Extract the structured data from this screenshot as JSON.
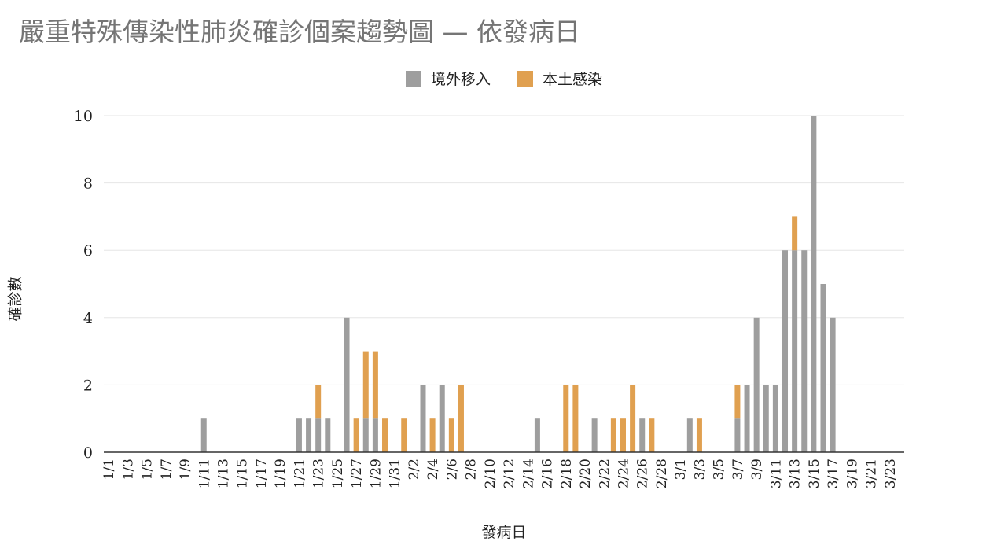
{
  "title": "嚴重特殊傳染性肺炎確診個案趨勢圖 — 依發病日",
  "colors": {
    "imported": "#9e9e9e",
    "local": "#e0a050"
  },
  "chart_data": {
    "type": "bar",
    "stacked": true,
    "xlabel": "發病日",
    "ylabel": "確診數",
    "ylim": [
      0,
      10
    ],
    "yticks": [
      0,
      2,
      4,
      6,
      8,
      10
    ],
    "grid": true,
    "legend_position": "top-center",
    "categories": [
      "1/1",
      "1/2",
      "1/3",
      "1/4",
      "1/5",
      "1/6",
      "1/7",
      "1/8",
      "1/9",
      "1/10",
      "1/11",
      "1/12",
      "1/13",
      "1/14",
      "1/15",
      "1/16",
      "1/17",
      "1/18",
      "1/19",
      "1/20",
      "1/21",
      "1/22",
      "1/23",
      "1/24",
      "1/25",
      "1/26",
      "1/27",
      "1/28",
      "1/29",
      "1/30",
      "1/31",
      "2/1",
      "2/2",
      "2/3",
      "2/4",
      "2/5",
      "2/6",
      "2/7",
      "2/8",
      "2/9",
      "2/10",
      "2/11",
      "2/12",
      "2/13",
      "2/14",
      "2/15",
      "2/16",
      "2/17",
      "2/18",
      "2/19",
      "2/20",
      "2/21",
      "2/22",
      "2/23",
      "2/24",
      "2/25",
      "2/26",
      "2/27",
      "2/28",
      "2/29",
      "3/1",
      "3/2",
      "3/3",
      "3/4",
      "3/5",
      "3/6",
      "3/7",
      "3/8",
      "3/9",
      "3/10",
      "3/11",
      "3/12",
      "3/13",
      "3/14",
      "3/15",
      "3/16",
      "3/17",
      "3/18",
      "3/19",
      "3/20",
      "3/21",
      "3/22",
      "3/23",
      "3/24"
    ],
    "tick_labels": [
      "1/1",
      "1/3",
      "1/5",
      "1/7",
      "1/9",
      "1/11",
      "1/13",
      "1/15",
      "1/17",
      "1/19",
      "1/21",
      "1/23",
      "1/25",
      "1/27",
      "1/29",
      "1/31",
      "2/2",
      "2/4",
      "2/6",
      "2/8",
      "2/10",
      "2/12",
      "2/14",
      "2/16",
      "2/18",
      "2/20",
      "2/22",
      "2/24",
      "2/26",
      "2/28",
      "3/1",
      "3/3",
      "3/5",
      "3/7",
      "3/9",
      "3/11",
      "3/13",
      "3/15",
      "3/17",
      "3/19",
      "3/21",
      "3/23"
    ],
    "series": [
      {
        "name": "境外移入",
        "values": [
          0,
          0,
          0,
          0,
          0,
          0,
          0,
          0,
          0,
          0,
          1,
          0,
          0,
          0,
          0,
          0,
          0,
          0,
          0,
          0,
          1,
          1,
          1,
          1,
          0,
          4,
          0,
          1,
          1,
          0,
          0,
          0,
          0,
          2,
          0,
          2,
          0,
          0,
          0,
          0,
          0,
          0,
          0,
          0,
          0,
          1,
          0,
          0,
          0,
          0,
          0,
          1,
          0,
          0,
          0,
          0,
          1,
          0,
          0,
          0,
          0,
          1,
          0,
          0,
          0,
          0,
          1,
          2,
          4,
          2,
          2,
          6,
          6,
          6,
          10,
          5,
          4,
          0,
          0,
          0,
          0,
          0,
          0,
          0
        ]
      },
      {
        "name": "本土感染",
        "values": [
          0,
          0,
          0,
          0,
          0,
          0,
          0,
          0,
          0,
          0,
          0,
          0,
          0,
          0,
          0,
          0,
          0,
          0,
          0,
          0,
          0,
          0,
          1,
          0,
          0,
          0,
          1,
          2,
          2,
          1,
          0,
          1,
          0,
          0,
          1,
          0,
          1,
          2,
          0,
          0,
          0,
          0,
          0,
          0,
          0,
          0,
          0,
          0,
          2,
          2,
          0,
          0,
          0,
          1,
          1,
          2,
          0,
          1,
          0,
          0,
          0,
          0,
          1,
          0,
          0,
          0,
          1,
          0,
          0,
          0,
          0,
          0,
          1,
          0,
          0,
          0,
          0,
          0,
          0,
          0,
          0,
          0,
          0,
          0
        ]
      }
    ]
  }
}
